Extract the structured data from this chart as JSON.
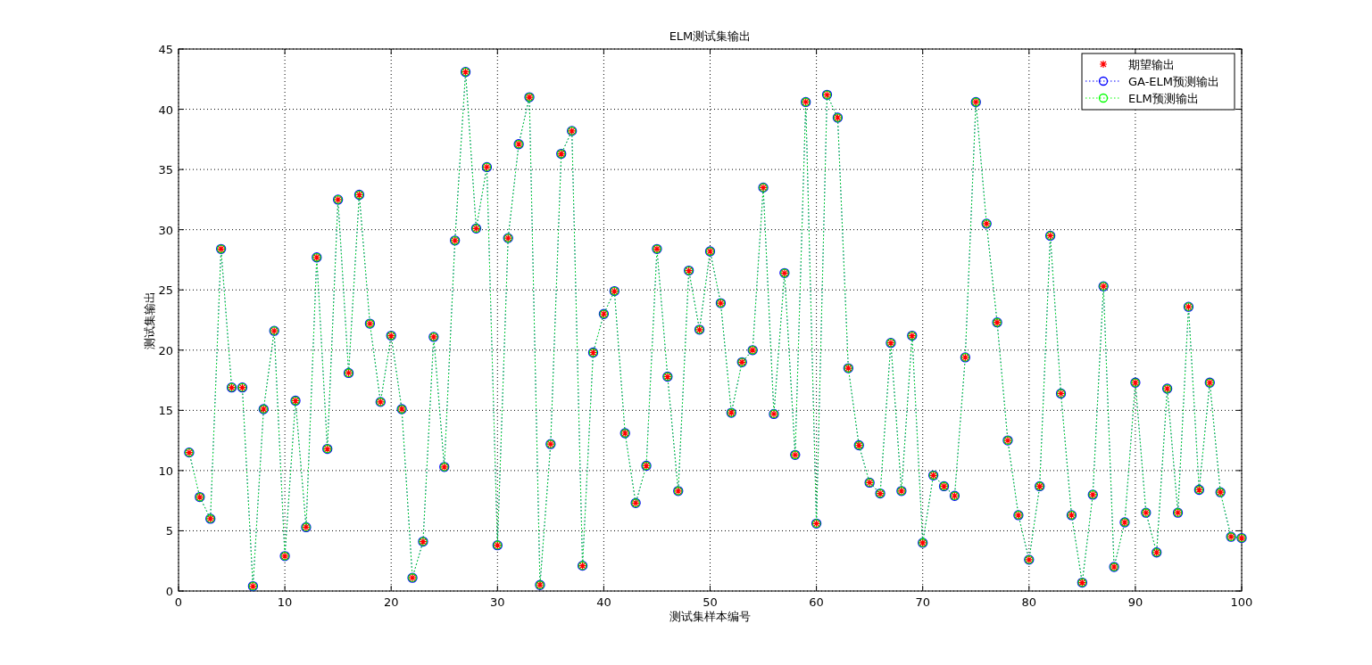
{
  "chart_data": {
    "type": "line",
    "title": "ELM测试集输出",
    "xlabel": "测试集样本编号",
    "ylabel": "测试集输出",
    "x": [
      1,
      2,
      3,
      4,
      5,
      6,
      7,
      8,
      9,
      10,
      11,
      12,
      13,
      14,
      15,
      16,
      17,
      18,
      19,
      20,
      21,
      22,
      23,
      24,
      25,
      26,
      27,
      28,
      29,
      30,
      31,
      32,
      33,
      34,
      35,
      36,
      37,
      38,
      39,
      40,
      41,
      42,
      43,
      44,
      45,
      46,
      47,
      48,
      49,
      50,
      51,
      52,
      53,
      54,
      55,
      56,
      57,
      58,
      59,
      60,
      61,
      62,
      63,
      64,
      65,
      66,
      67,
      68,
      69,
      70,
      71,
      72,
      73,
      74,
      75,
      76,
      77,
      78,
      79,
      80,
      81,
      82,
      83,
      84,
      85,
      86,
      87,
      88,
      89,
      90,
      91,
      92,
      93,
      94,
      95,
      96,
      97,
      98,
      99,
      100
    ],
    "series": [
      {
        "name": "期望输出",
        "type": "scatter",
        "marker": "cross",
        "color": "#ff0000",
        "values": [
          11.5,
          7.8,
          6.0,
          28.4,
          16.9,
          16.9,
          0.4,
          15.1,
          21.6,
          2.9,
          15.8,
          5.3,
          27.7,
          11.8,
          32.5,
          18.1,
          32.9,
          22.2,
          15.7,
          21.2,
          15.1,
          1.1,
          4.1,
          21.1,
          10.3,
          29.1,
          43.1,
          30.1,
          35.2,
          3.8,
          29.3,
          37.1,
          41.0,
          0.5,
          12.2,
          36.3,
          38.2,
          2.1,
          19.8,
          23.0,
          24.9,
          13.1,
          7.3,
          10.4,
          28.4,
          17.8,
          8.3,
          26.6,
          21.7,
          28.2,
          23.9,
          14.8,
          19.0,
          20.0,
          33.5,
          14.7,
          26.4,
          11.3,
          40.6,
          5.6,
          41.2,
          39.3,
          18.5,
          12.1,
          9.0,
          8.1,
          20.6,
          8.3,
          21.2,
          4.0,
          9.6,
          8.7,
          7.9,
          19.4,
          40.6,
          30.5,
          22.3,
          12.5,
          6.3,
          2.6,
          8.7,
          29.5,
          16.4,
          6.3,
          0.7,
          8.0,
          25.3,
          2.0,
          5.7,
          17.3,
          6.5,
          3.2,
          16.8,
          6.5,
          23.6,
          8.4,
          17.3,
          8.2,
          4.5,
          4.4
        ]
      },
      {
        "name": "GA-ELM预测输出",
        "marker": "circle",
        "line_style": "dotted",
        "color": "#0000ff",
        "values": [
          11.5,
          7.8,
          6.0,
          28.4,
          16.9,
          16.9,
          0.4,
          15.1,
          21.6,
          2.9,
          15.8,
          5.3,
          27.7,
          11.8,
          32.5,
          18.1,
          32.9,
          22.2,
          15.7,
          21.2,
          15.1,
          1.1,
          4.1,
          21.1,
          10.3,
          29.1,
          43.1,
          30.1,
          35.2,
          3.8,
          29.3,
          37.1,
          41.0,
          0.5,
          12.2,
          36.3,
          38.2,
          2.1,
          19.8,
          23.0,
          24.9,
          13.1,
          7.3,
          10.4,
          28.4,
          17.8,
          8.3,
          26.6,
          21.7,
          28.2,
          23.9,
          14.8,
          19.0,
          20.0,
          33.5,
          14.7,
          26.4,
          11.3,
          40.6,
          5.6,
          41.2,
          39.3,
          18.5,
          12.1,
          9.0,
          8.1,
          20.6,
          8.3,
          21.2,
          4.0,
          9.6,
          8.7,
          7.9,
          19.4,
          40.6,
          30.5,
          22.3,
          12.5,
          6.3,
          2.6,
          8.7,
          29.5,
          16.4,
          6.3,
          0.7,
          8.0,
          25.3,
          2.0,
          5.7,
          17.3,
          6.5,
          3.2,
          16.8,
          6.5,
          23.6,
          8.4,
          17.3,
          8.2,
          4.5,
          4.4
        ]
      },
      {
        "name": "ELM预测输出",
        "marker": "circle",
        "line_style": "dotted",
        "color": "#00ff00",
        "values": [
          11.5,
          7.8,
          6.0,
          28.4,
          16.9,
          16.9,
          0.4,
          15.1,
          21.6,
          2.9,
          15.8,
          5.3,
          27.7,
          11.8,
          32.5,
          18.1,
          32.9,
          22.2,
          15.7,
          21.2,
          15.1,
          1.1,
          4.1,
          21.1,
          10.3,
          29.1,
          43.1,
          30.1,
          35.2,
          3.8,
          29.3,
          37.1,
          41.0,
          0.5,
          12.2,
          36.3,
          38.2,
          2.1,
          19.8,
          23.0,
          24.9,
          13.1,
          7.3,
          10.4,
          28.4,
          17.8,
          8.3,
          26.6,
          21.7,
          28.2,
          23.9,
          14.8,
          19.0,
          20.0,
          33.5,
          14.7,
          26.4,
          11.3,
          40.6,
          5.6,
          41.2,
          39.3,
          18.5,
          12.1,
          9.0,
          8.1,
          20.6,
          8.3,
          21.2,
          4.0,
          9.6,
          8.7,
          7.9,
          19.4,
          40.6,
          30.5,
          22.3,
          12.5,
          6.3,
          2.6,
          8.7,
          29.5,
          16.4,
          6.3,
          0.7,
          8.0,
          25.3,
          2.0,
          5.7,
          17.3,
          6.5,
          3.2,
          16.8,
          6.5,
          23.6,
          8.4,
          17.3,
          8.2,
          4.5,
          4.4
        ]
      }
    ],
    "xlim": [
      0,
      100
    ],
    "ylim": [
      0,
      45
    ],
    "xticks": [
      0,
      10,
      20,
      30,
      40,
      50,
      60,
      70,
      80,
      90,
      100
    ],
    "yticks": [
      0,
      5,
      10,
      15,
      20,
      25,
      30,
      35,
      40,
      45
    ],
    "grid": true,
    "legend": "top right"
  }
}
